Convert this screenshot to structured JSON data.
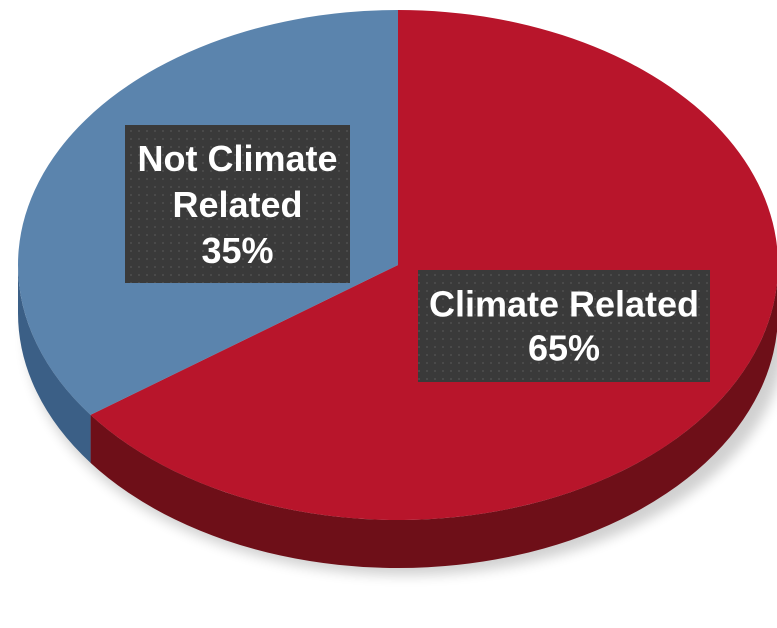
{
  "chart_data": {
    "type": "pie",
    "title": "",
    "slices": [
      {
        "label_lines": [
          "Climate Related"
        ],
        "percent_text": "65%",
        "value": 65,
        "color": "#b8152b",
        "side_color": "#6e0f18"
      },
      {
        "label_lines": [
          "Not Climate",
          "Related"
        ],
        "percent_text": "35%",
        "value": 35,
        "color": "#5b84ad",
        "side_color": "#3b5f86"
      }
    ],
    "legend": "none",
    "label_style": "data labels inside dark boxes"
  }
}
